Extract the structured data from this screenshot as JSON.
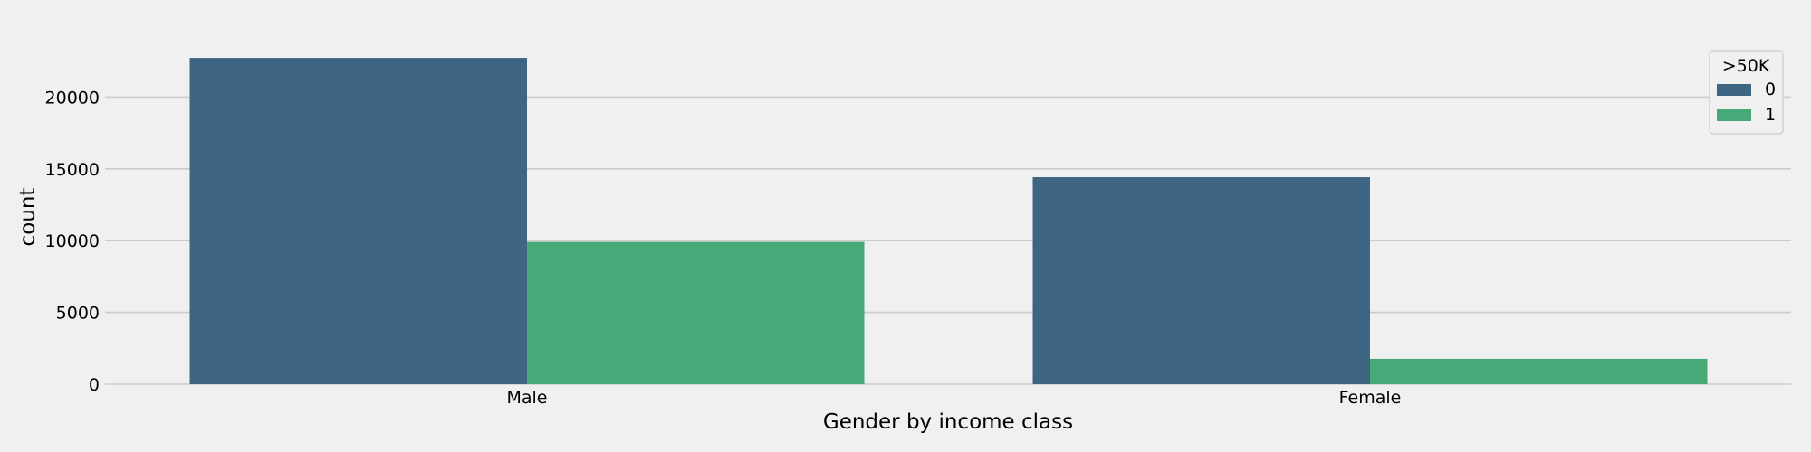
{
  "chart_data": {
    "type": "bar",
    "title": "",
    "xlabel": "Gender by income class",
    "ylabel": "count",
    "categories": [
      "Male",
      "Female"
    ],
    "series": [
      {
        "name": "0",
        "values": [
          22732,
          14423
        ],
        "color": "#3e6683"
      },
      {
        "name": "1",
        "values": [
          9918,
          1769
        ],
        "color": "#47a878"
      }
    ],
    "yticks": [
      0,
      5000,
      10000,
      15000,
      20000
    ],
    "ylim": [
      0,
      23870
    ],
    "grid": true,
    "legend": {
      "title": ">50K",
      "placement": "top-right"
    }
  },
  "colors": {
    "background": "#f0f0f0",
    "grid": "#cbcbcb",
    "legend_border": "#cccccc"
  }
}
